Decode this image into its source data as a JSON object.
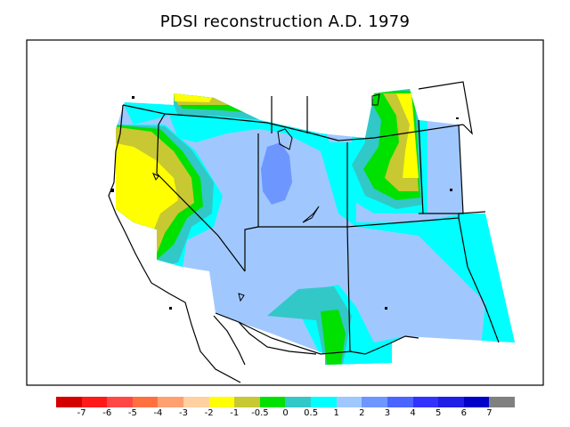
{
  "title": "PDSI reconstruction A.D. 1979",
  "legend": {
    "colors": [
      "#d40000",
      "#ff1a1a",
      "#ff4747",
      "#ff7040",
      "#ffa070",
      "#ffd0a0",
      "#ffff00",
      "#c8c832",
      "#00e100",
      "#32c8c8",
      "#00ffff",
      "#a0c8ff",
      "#6e96ff",
      "#4b64ff",
      "#3232ff",
      "#1e1ee6",
      "#0000c8",
      "#808080"
    ],
    "labels": [
      "-7",
      "-6",
      "-5",
      "-4",
      "-3",
      "-2",
      "-1",
      "-0.5",
      "0",
      "0.5",
      "1",
      "2",
      "3",
      "4",
      "5",
      "6",
      "7"
    ]
  }
}
